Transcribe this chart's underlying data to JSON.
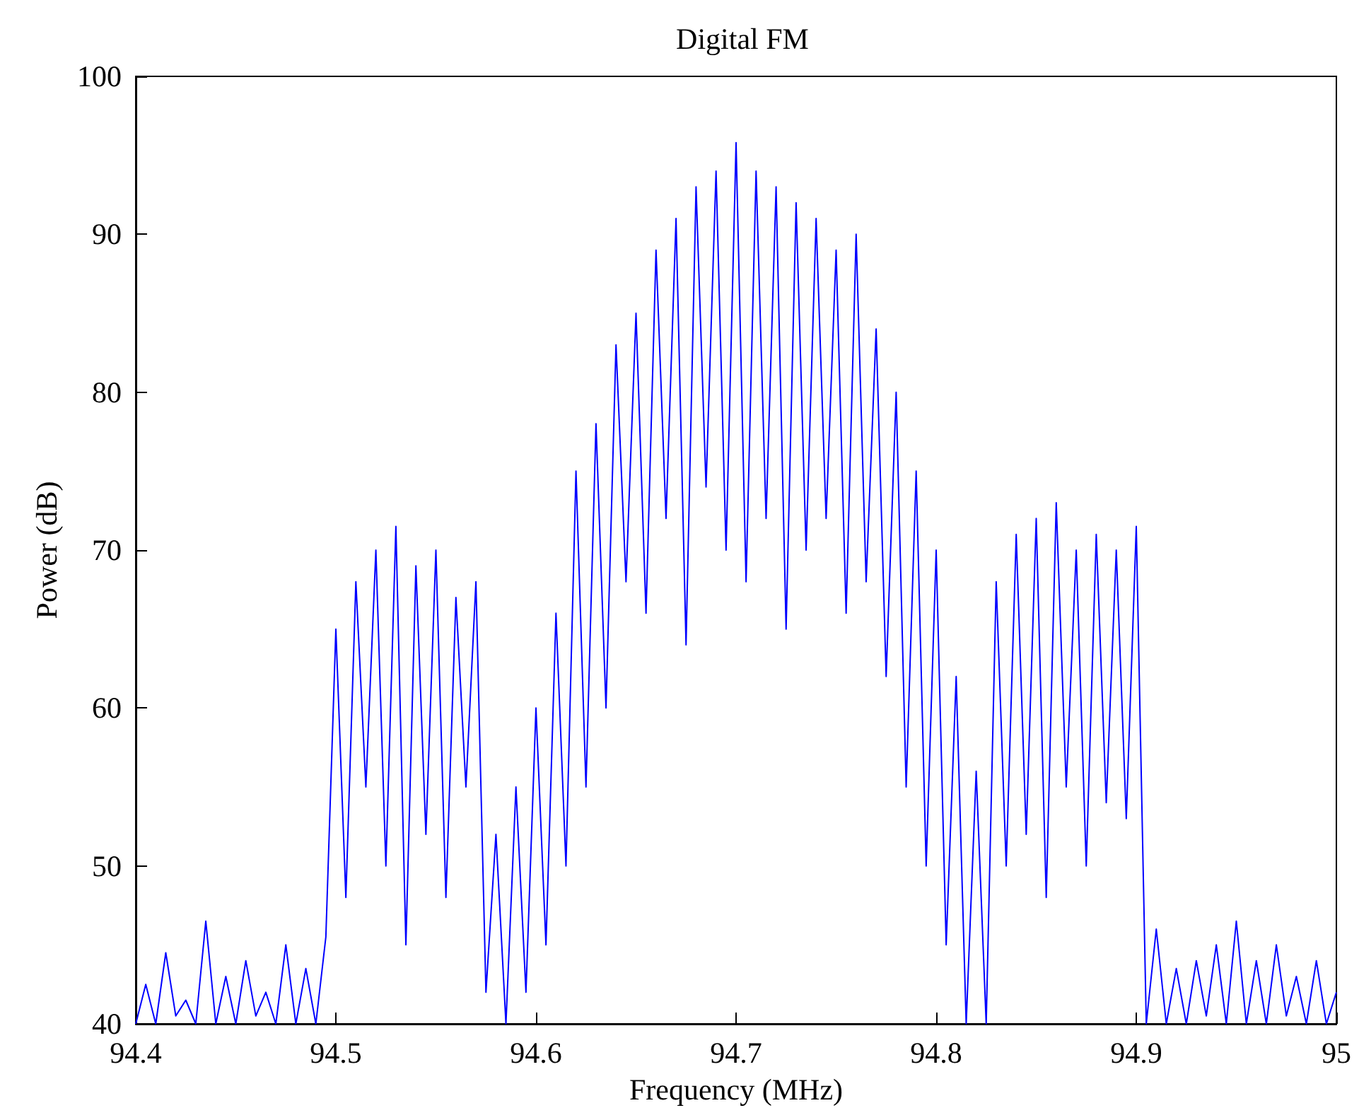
{
  "chart_data": {
    "type": "line",
    "title": "Digital FM",
    "xlabel": "Frequency (MHz)",
    "ylabel": "Power (dB)",
    "xlim": [
      94.4,
      95
    ],
    "xticks": [
      94.4,
      94.5,
      94.6,
      94.7,
      94.8,
      94.9,
      95
    ],
    "ylim": [
      40,
      100
    ],
    "yticks": [
      40,
      50,
      60,
      70,
      80,
      90,
      100
    ],
    "grid": false,
    "series": [
      {
        "color": "#0000ff",
        "x": [
          94.4,
          94.405,
          94.41,
          94.415,
          94.42,
          94.425,
          94.43,
          94.435,
          94.44,
          94.445,
          94.45,
          94.455,
          94.46,
          94.465,
          94.47,
          94.475,
          94.48,
          94.485,
          94.49,
          94.495,
          94.5,
          94.505,
          94.51,
          94.515,
          94.52,
          94.525,
          94.53,
          94.535,
          94.54,
          94.545,
          94.55,
          94.555,
          94.56,
          94.565,
          94.57,
          94.575,
          94.58,
          94.585,
          94.59,
          94.595,
          94.6,
          94.605,
          94.61,
          94.615,
          94.62,
          94.625,
          94.63,
          94.635,
          94.64,
          94.645,
          94.65,
          94.655,
          94.66,
          94.665,
          94.67,
          94.675,
          94.68,
          94.685,
          94.69,
          94.695,
          94.7,
          94.705,
          94.71,
          94.715,
          94.72,
          94.725,
          94.73,
          94.735,
          94.74,
          94.745,
          94.75,
          94.755,
          94.76,
          94.765,
          94.77,
          94.775,
          94.78,
          94.785,
          94.79,
          94.795,
          94.8,
          94.805,
          94.81,
          94.815,
          94.82,
          94.825,
          94.83,
          94.835,
          94.84,
          94.845,
          94.85,
          94.855,
          94.86,
          94.865,
          94.87,
          94.875,
          94.88,
          94.885,
          94.89,
          94.895,
          94.9,
          94.905,
          94.91,
          94.915,
          94.92,
          94.925,
          94.93,
          94.935,
          94.94,
          94.945,
          94.95,
          94.955,
          94.96,
          94.965,
          94.97,
          94.975,
          94.98,
          94.985,
          94.99,
          94.995,
          95
        ],
        "values": [
          40,
          42.5,
          40,
          44.5,
          40.5,
          41.5,
          40,
          46.5,
          40,
          43,
          40,
          44,
          40.5,
          42,
          40,
          45,
          40,
          43.5,
          40,
          45.5,
          65,
          48,
          68,
          55,
          70,
          50,
          71.5,
          45,
          69,
          52,
          70,
          48,
          67,
          55,
          68,
          42,
          52,
          40,
          55,
          42,
          60,
          45,
          66,
          50,
          75,
          55,
          78,
          60,
          83,
          68,
          85,
          66,
          89,
          72,
          91,
          64,
          93,
          74,
          94,
          70,
          95.8,
          68,
          94,
          72,
          93,
          65,
          92,
          70,
          91,
          72,
          89,
          66,
          90,
          68,
          84,
          62,
          80,
          55,
          75,
          50,
          70,
          45,
          62,
          40,
          56,
          40,
          68,
          50,
          71,
          52,
          72,
          48,
          73,
          55,
          70,
          50,
          71,
          54,
          70,
          53,
          71.5,
          40,
          46,
          40,
          43.5,
          40,
          44,
          40.5,
          45,
          40,
          46.5,
          40,
          44,
          40,
          45,
          40.5,
          43,
          40,
          44,
          40,
          42
        ]
      }
    ]
  }
}
